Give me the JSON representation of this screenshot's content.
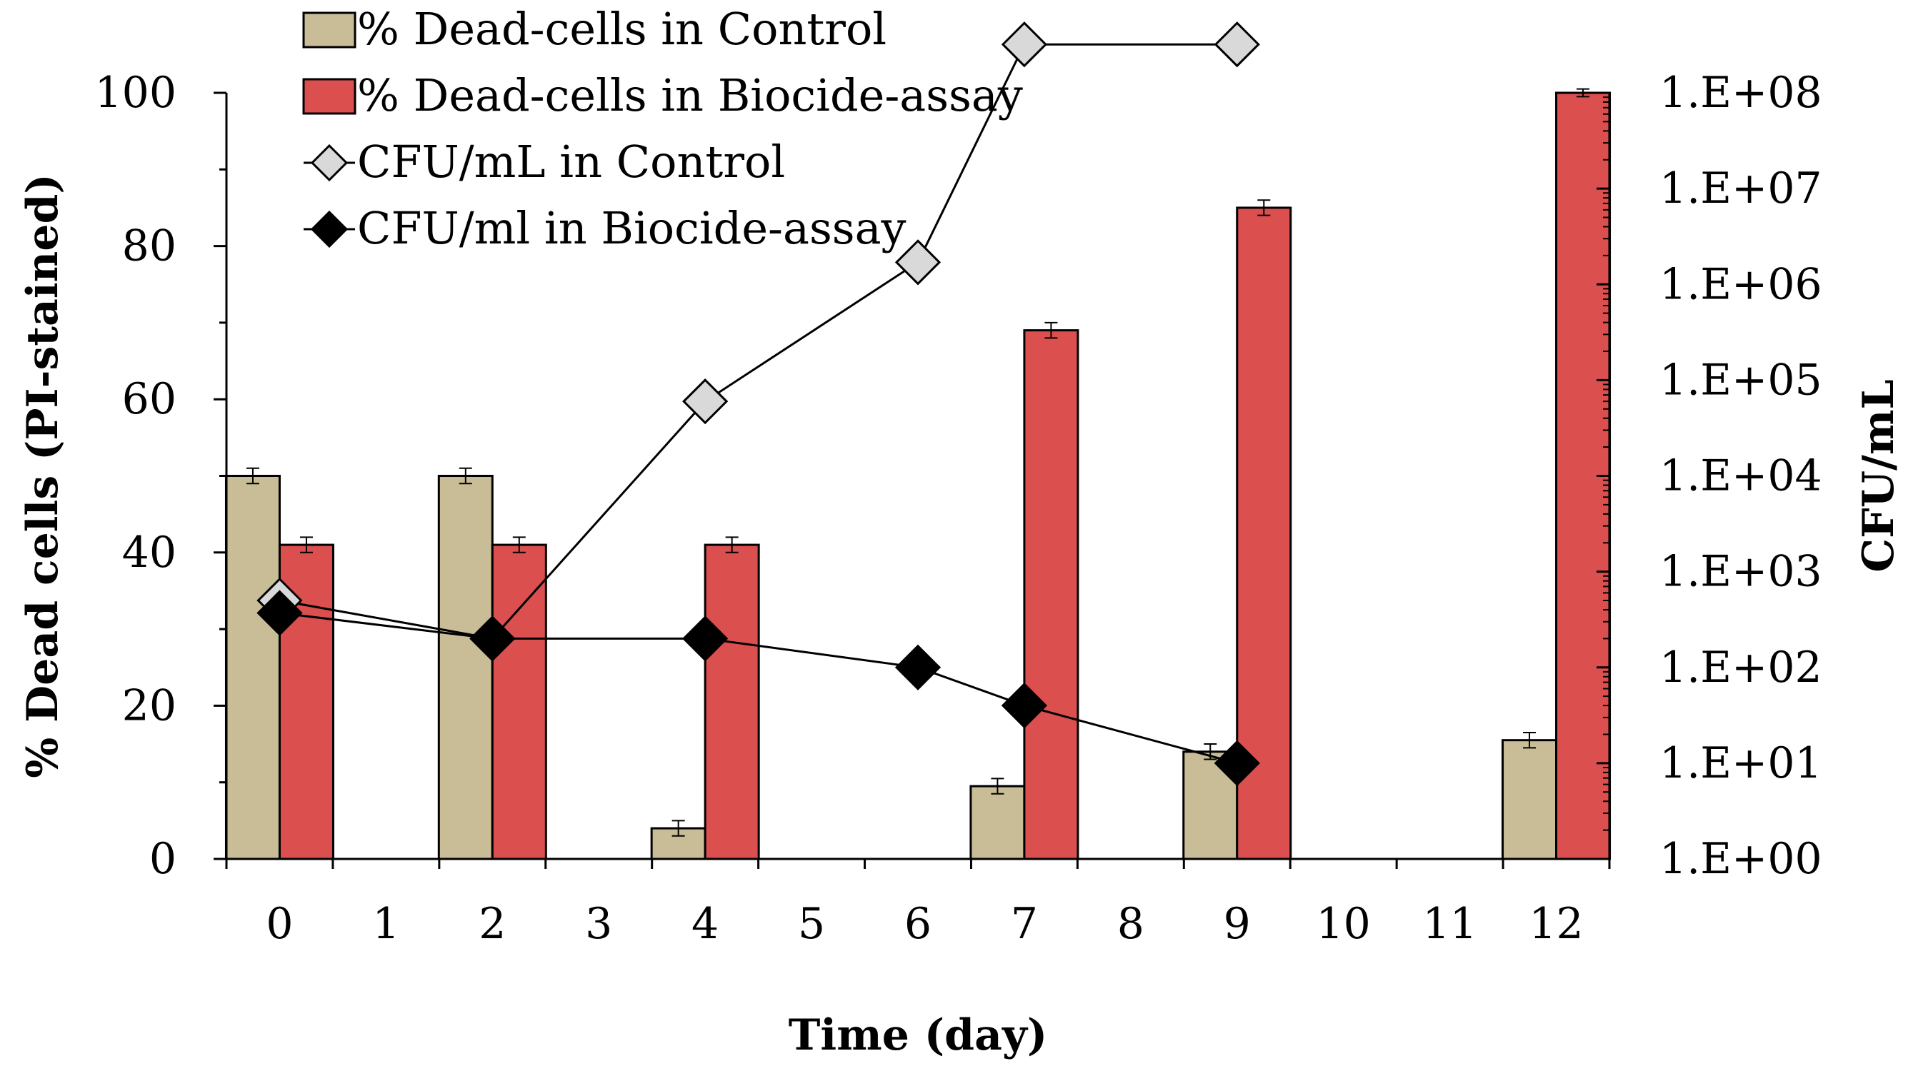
{
  "chart_data": {
    "type": "bar",
    "title": "",
    "xlabel": "Time (day)",
    "ylabel": "% Dead cells (PI-stained)",
    "y2label": "CFU/mL",
    "ylim": [
      0,
      100
    ],
    "yticks": [
      "0",
      "20",
      "40",
      "60",
      "80",
      "100"
    ],
    "y2_scale": "log",
    "y2_range_exponents": [
      0,
      8
    ],
    "y2ticks": [
      "1.E+00",
      "1.E+01",
      "1.E+02",
      "1.E+03",
      "1.E+04",
      "1.E+05",
      "1.E+06",
      "1.E+07",
      "1.E+08"
    ],
    "categories": [
      "0",
      "1",
      "2",
      "3",
      "4",
      "5",
      "6",
      "7",
      "8",
      "9",
      "10",
      "11",
      "12"
    ],
    "legend_position": "top-left",
    "series": [
      {
        "name": "% Dead-cells in Control",
        "type": "bar",
        "axis": "left",
        "color": "#c8bd96",
        "values": [
          50,
          null,
          50,
          null,
          4,
          null,
          null,
          9.5,
          null,
          14,
          null,
          null,
          15.5
        ],
        "errors": [
          1,
          null,
          1,
          null,
          1,
          null,
          null,
          1,
          null,
          1,
          null,
          null,
          1
        ]
      },
      {
        "name": "% Dead-cells in Biocide-assay",
        "type": "bar",
        "axis": "left",
        "color": "#dc4f4f",
        "values": [
          41,
          null,
          41,
          null,
          41,
          null,
          null,
          69,
          null,
          85,
          null,
          null,
          100
        ],
        "errors": [
          1,
          null,
          1,
          null,
          1,
          null,
          null,
          1,
          null,
          1,
          null,
          null,
          0.5
        ]
      },
      {
        "name": "CFU/mL in Control",
        "type": "line",
        "axis": "right",
        "marker": "diamond-open",
        "color": "#d9d9d9",
        "values": [
          500,
          null,
          200,
          null,
          60000,
          null,
          1700000,
          320000000,
          null,
          320000000,
          null,
          null,
          null
        ]
      },
      {
        "name": "CFU/ml in Biocide-assay",
        "type": "line",
        "axis": "right",
        "marker": "diamond-filled",
        "color": "#000000",
        "values": [
          370,
          null,
          200,
          null,
          200,
          null,
          100,
          40,
          null,
          10,
          null,
          null,
          null
        ]
      }
    ]
  }
}
